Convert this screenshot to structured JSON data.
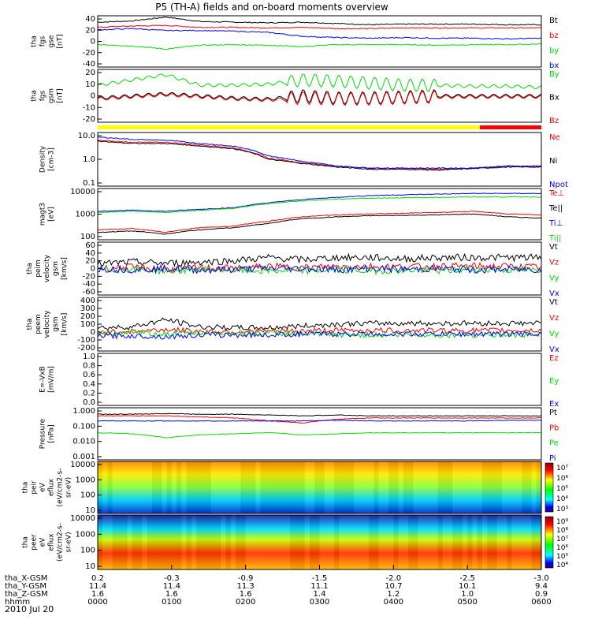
{
  "title": "P5 (TH-A) fields and on-board moments overview",
  "date_label": "2010 Jul 20",
  "ephemeris": {
    "row_labels": [
      "tha_X-GSM",
      "tha_Y-GSM",
      "tha_Z-GSM",
      "hhmm"
    ],
    "columns": [
      {
        "x": "0.2",
        "y": "11.4",
        "z": "1.6",
        "t": "0000"
      },
      {
        "x": "-0.3",
        "y": "11.4",
        "z": "1.6",
        "t": "0100"
      },
      {
        "x": "-0.9",
        "y": "11.3",
        "z": "1.6",
        "t": "0200"
      },
      {
        "x": "-1.5",
        "y": "11.1",
        "z": "1.4",
        "t": "0300"
      },
      {
        "x": "-2.0",
        "y": "10.7",
        "z": "1.2",
        "t": "0400"
      },
      {
        "x": "-2.5",
        "y": "10.1",
        "z": "1.0",
        "t": "0500"
      },
      {
        "x": "-3.0",
        "y": "9.4",
        "z": "0.9",
        "t": "0600"
      }
    ]
  },
  "colors": {
    "black": "#000000",
    "red": "#ff0000",
    "green": "#00dd00",
    "blue": "#0000ff",
    "yellow": "#ffff00"
  },
  "chart_data": [
    {
      "type": "line",
      "ylabel": [
        "tha",
        "fgs",
        "gse",
        "[nT]"
      ],
      "yticks": [
        "40",
        "20",
        "0",
        "-20",
        "-40"
      ],
      "ylim": [
        -40,
        40
      ],
      "series": [
        {
          "name": "Bt",
          "color": "#000000",
          "values": [
            30,
            32,
            38,
            31,
            30,
            29,
            30,
            28,
            26,
            27,
            27,
            27,
            26,
            26
          ]
        },
        {
          "name": "bz",
          "color": "#ff0000",
          "values": [
            22,
            24,
            25,
            22,
            22,
            21,
            22,
            20,
            20,
            21,
            21,
            21,
            21,
            21
          ]
        },
        {
          "name": "by",
          "color": "#00dd00",
          "values": [
            -5,
            -7,
            -12,
            -6,
            -5,
            -6,
            -8,
            -5,
            -5,
            -5,
            -6,
            -5,
            -5,
            -4
          ]
        },
        {
          "name": "bx",
          "color": "#0000ff",
          "values": [
            18,
            20,
            17,
            17,
            16,
            14,
            8,
            6,
            5,
            6,
            5,
            5,
            4,
            5
          ]
        }
      ]
    },
    {
      "type": "line",
      "ylabel": [
        "tha",
        "fgs",
        "gsm",
        "[nT]"
      ],
      "yticks": [
        "20",
        "10",
        "0",
        "-10",
        "-20"
      ],
      "ylim": [
        -25,
        25
      ],
      "series": [
        {
          "name": "By",
          "color": "#00dd00",
          "values": [
            10,
            15,
            20,
            10,
            10,
            11,
            15,
            14,
            12,
            10,
            10,
            9,
            9,
            8
          ]
        },
        {
          "name": "Bx",
          "color": "#000000",
          "values": [
            -2,
            0,
            2,
            0,
            -2,
            -3,
            0,
            -2,
            -2,
            -1,
            0,
            0,
            0,
            0
          ]
        },
        {
          "name": "Bz",
          "color": "#ff0000",
          "values": [
            -3,
            -1,
            1,
            -1,
            -3,
            -4,
            -2,
            -3,
            -3,
            -2,
            -1,
            -1,
            -1,
            -1
          ]
        }
      ]
    },
    {
      "type": "line",
      "ylabel": [
        "Density",
        "[cm-3]"
      ],
      "log": true,
      "yticks": [
        "10.0",
        "1.0",
        "0.1"
      ],
      "ylim": [
        0.1,
        12
      ],
      "series": [
        {
          "name": "Ne",
          "color": "#ff0000",
          "values": [
            6,
            5,
            5,
            4,
            3,
            1.2,
            0.8,
            0.6,
            0.5,
            0.5,
            0.45,
            0.5,
            0.6,
            0.6
          ]
        },
        {
          "name": "Ni",
          "color": "#000000",
          "values": [
            5.5,
            4.6,
            4.5,
            3.6,
            2.8,
            1.1,
            0.75,
            0.55,
            0.45,
            0.45,
            0.42,
            0.48,
            0.55,
            0.55
          ]
        },
        {
          "name": "Npot",
          "color": "#0000ff",
          "values": [
            8,
            6.5,
            6,
            4.5,
            3.5,
            1.5,
            0.9,
            0.6,
            0.5,
            0.5,
            0.5,
            0.5,
            0.6,
            0.6
          ]
        }
      ]
    },
    {
      "type": "line",
      "ylabel": [
        "magt3",
        "[eV]"
      ],
      "log": true,
      "yticks": [
        "10000",
        "1000",
        "100"
      ],
      "ylim": [
        20,
        12000
      ],
      "series": [
        {
          "name": "Te⊥",
          "color": "#ff0000",
          "values": [
            70,
            80,
            50,
            90,
            110,
            200,
            350,
            450,
            500,
            550,
            600,
            700,
            500,
            450
          ]
        },
        {
          "name": "Te||",
          "color": "#000000",
          "values": [
            50,
            60,
            40,
            70,
            90,
            150,
            280,
            350,
            400,
            420,
            450,
            500,
            350,
            300
          ]
        },
        {
          "name": "Ti⊥",
          "color": "#0000ff",
          "values": [
            700,
            800,
            700,
            900,
            1100,
            2000,
            3000,
            4000,
            5000,
            5500,
            6000,
            6500,
            6500,
            6500
          ]
        },
        {
          "name": "Ti||",
          "color": "#00dd00",
          "values": [
            600,
            700,
            600,
            800,
            1000,
            1800,
            2600,
            3200,
            3600,
            3800,
            4000,
            4200,
            4200,
            4200
          ]
        }
      ]
    },
    {
      "type": "line",
      "ylabel": [
        "tha",
        "peim",
        "velocity",
        "gsm",
        "[km/s]"
      ],
      "yticks": [
        "60",
        "40",
        "20",
        "0",
        "-20",
        "-40",
        "-60"
      ],
      "ylim": [
        -60,
        60
      ],
      "series": [
        {
          "name": "Vt",
          "color": "#000000",
          "values": [
            10,
            15,
            12,
            15,
            18,
            25,
            20,
            25,
            25,
            22,
            25,
            25,
            25,
            25
          ]
        },
        {
          "name": "Vz",
          "color": "#ff0000",
          "values": [
            0,
            3,
            -2,
            2,
            0,
            5,
            2,
            5,
            5,
            4,
            5,
            5,
            5,
            3
          ]
        },
        {
          "name": "Vy",
          "color": "#00dd00",
          "values": [
            -3,
            -2,
            -5,
            -2,
            -3,
            -5,
            -5,
            -3,
            -5,
            -3,
            -5,
            -2,
            -3,
            -3
          ]
        },
        {
          "name": "Vx",
          "color": "#0000ff",
          "values": [
            0,
            -2,
            0,
            -3,
            -2,
            0,
            0,
            -2,
            0,
            -2,
            0,
            -3,
            -2,
            -2
          ]
        }
      ]
    },
    {
      "type": "line",
      "ylabel": [
        "tha",
        "peem",
        "velocity",
        "gsm",
        "[km/s]"
      ],
      "yticks": [
        "400",
        "300",
        "200",
        "100",
        "0",
        "-100",
        "-200"
      ],
      "ylim": [
        -200,
        400
      ],
      "series": [
        {
          "name": "Vt",
          "color": "#000000",
          "values": [
            60,
            70,
            150,
            70,
            60,
            60,
            80,
            100,
            110,
            110,
            110,
            110,
            110,
            110
          ]
        },
        {
          "name": "Vz",
          "color": "#ff0000",
          "values": [
            10,
            20,
            40,
            20,
            15,
            20,
            25,
            30,
            30,
            30,
            30,
            30,
            30,
            30
          ]
        },
        {
          "name": "Vy",
          "color": "#00dd00",
          "values": [
            0,
            0,
            -10,
            0,
            0,
            0,
            -10,
            -20,
            -20,
            -20,
            -20,
            -20,
            -20,
            -20
          ]
        },
        {
          "name": "Vx",
          "color": "#0000ff",
          "values": [
            -30,
            -30,
            -40,
            -20,
            -20,
            -20,
            -10,
            -10,
            -10,
            -10,
            -10,
            -10,
            -10,
            -10
          ]
        }
      ]
    },
    {
      "type": "line",
      "ylabel": [
        "E=-VxB",
        "[mV/m]"
      ],
      "yticks": [
        "1.0",
        "0.8",
        "0.6",
        "0.4",
        "0.2",
        "0.0"
      ],
      "ylim": [
        0,
        1
      ],
      "series": [
        {
          "name": "Ez",
          "color": "#ff0000",
          "values": []
        },
        {
          "name": "Ey",
          "color": "#00dd00",
          "values": []
        },
        {
          "name": "Ex",
          "color": "#0000ff",
          "values": []
        }
      ]
    },
    {
      "type": "line",
      "ylabel": [
        "Pressure",
        "[nPa]"
      ],
      "log": true,
      "yticks": [
        "1.000",
        "0.100",
        "0.010",
        "0.001"
      ],
      "ylim": [
        0.001,
        1.2
      ],
      "series": [
        {
          "name": "Pt",
          "color": "#000000",
          "values": [
            0.5,
            0.5,
            0.55,
            0.5,
            0.5,
            0.45,
            0.4,
            0.45,
            0.4,
            0.4,
            0.4,
            0.4,
            0.4,
            0.4
          ]
        },
        {
          "name": "Pb",
          "color": "#ff0000",
          "values": [
            0.4,
            0.4,
            0.4,
            0.35,
            0.3,
            0.2,
            0.15,
            0.25,
            0.3,
            0.3,
            0.3,
            0.3,
            0.3,
            0.3
          ]
        },
        {
          "name": "Pe",
          "color": "#00dd00",
          "values": [
            0.04,
            0.035,
            0.02,
            0.03,
            0.035,
            0.04,
            0.03,
            0.035,
            0.04,
            0.04,
            0.04,
            0.04,
            0.04,
            0.04
          ]
        },
        {
          "name": "Pi",
          "color": "#0000ff",
          "values": [
            0.2,
            0.2,
            0.2,
            0.2,
            0.2,
            0.2,
            0.2,
            0.22,
            0.2,
            0.2,
            0.2,
            0.2,
            0.22,
            0.22
          ]
        }
      ]
    },
    {
      "type": "heatmap",
      "ylabel": [
        "tha",
        "peir",
        "eV",
        "eflux",
        "(eV/cm2-s-",
        "sr-eV)"
      ],
      "yticks": [
        "10000",
        "1000",
        "100",
        "10"
      ],
      "colorbar_ticks": [
        "10⁷",
        "10⁶",
        "10⁵",
        "10⁴",
        "10³"
      ]
    },
    {
      "type": "heatmap",
      "ylabel": [
        "tha",
        "peer",
        "eV",
        "eflux",
        "(eV/cm2-s-",
        "sr-eV)"
      ],
      "yticks": [
        "10000",
        "1000",
        "100",
        "10"
      ],
      "colorbar_ticks": [
        "10⁹",
        "10⁸",
        "10⁷",
        "10⁶",
        "10⁵",
        "10⁴"
      ]
    }
  ]
}
